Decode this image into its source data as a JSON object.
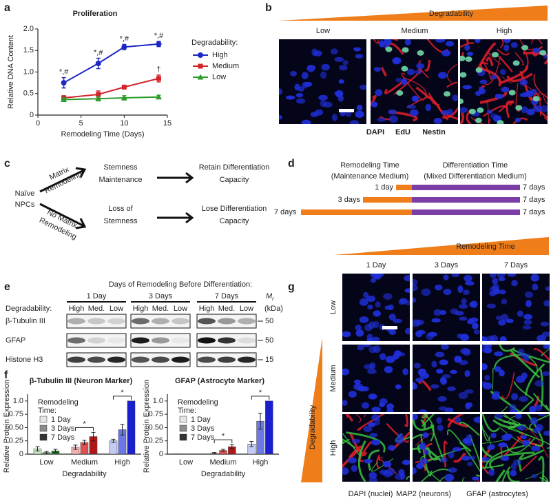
{
  "panel_labels": [
    "a",
    "b",
    "c",
    "d",
    "e",
    "f",
    "g"
  ],
  "chart_data": [
    {
      "type": "line",
      "title": "Proliferation",
      "x_label": "Remodeling Time (Days)",
      "y_label": "Relative DNA Content",
      "legend_title": "Degradability:",
      "x": [
        3,
        7,
        10,
        14
      ],
      "xlim": [
        0,
        15
      ],
      "xticks": [
        0,
        5,
        10,
        15
      ],
      "ylim": [
        0,
        2
      ],
      "yticks": [
        0,
        0.5,
        {
          "value": 1,
          "label": "1.0"
        },
        1.5,
        {
          "value": 2,
          "label": "2.0"
        }
      ],
      "series": [
        {
          "name": "High",
          "color": "#1c27c4",
          "marker": "circle",
          "values": [
            0.75,
            1.2,
            1.58,
            1.65
          ],
          "errors": [
            0.12,
            0.12,
            0.06,
            0.06
          ],
          "point_labels": [
            "*,#",
            "*,#",
            "*,#",
            "*,#"
          ]
        },
        {
          "name": "Medium",
          "color": "#d2232a",
          "marker": "square",
          "values": [
            0.4,
            0.48,
            0.65,
            0.85
          ],
          "errors": [
            0.05,
            0.08,
            0.04,
            0.08
          ],
          "point_labels": [
            null,
            null,
            null,
            "†"
          ]
        },
        {
          "name": "Low",
          "color": "#2a9d2a",
          "marker": "triangle",
          "values": [
            0.36,
            0.38,
            0.4,
            0.42
          ],
          "errors": [
            0.04,
            0.05,
            0.05,
            0.04
          ],
          "point_labels": [
            null,
            null,
            null,
            null
          ]
        }
      ]
    },
    {
      "type": "bar",
      "title": "β-Tubulin III (Neuron Marker)",
      "x_label": "Degradability",
      "y_label": "Relative Protein Expression",
      "legend_title": [
        "Remodeling",
        "Time:"
      ],
      "categories": [
        "Low",
        "Medium",
        "High"
      ],
      "ylim": [
        0,
        1.05
      ],
      "yticks": [
        0,
        0.25,
        {
          "value": 0.5,
          "label": "0.50"
        },
        0.75,
        {
          "value": 1,
          "label": "1.0"
        }
      ],
      "series": [
        {
          "name": "1 Day",
          "color": "#e6e6e6",
          "colors": [
            "#c8e6c0",
            "#f3b2b2",
            "#c5cbf3"
          ],
          "values": [
            0.1,
            0.13,
            0.25
          ],
          "errors": [
            0.04,
            0.04,
            0.03
          ]
        },
        {
          "name": "3 Days",
          "color": "#8c8c8c",
          "colors": [
            "#5fb35a",
            "#e05050",
            "#6b78e6"
          ],
          "values": [
            0.03,
            0.22,
            0.46
          ],
          "errors": [
            0.02,
            0.04,
            0.1
          ]
        },
        {
          "name": "7 Days",
          "color": "#333333",
          "colors": [
            "#1e7a2a",
            "#b01818",
            "#1a1fd0"
          ],
          "values": [
            0.06,
            0.33,
            1.0
          ],
          "errors": [
            0.03,
            0.08,
            0
          ]
        }
      ],
      "significance": [
        "*",
        "*"
      ]
    },
    {
      "type": "bar",
      "title": "GFAP (Astrocyte Marker)",
      "x_label": "Degradability",
      "y_label": "Relative Protein Expression",
      "legend_title": [
        "Remodeling",
        "Time:"
      ],
      "categories": [
        "Low",
        "Medium",
        "High"
      ],
      "ylim": [
        0,
        1.05
      ],
      "yticks": [
        0,
        0.25,
        {
          "value": 0.5,
          "label": "0.50"
        },
        0.75,
        {
          "value": 1,
          "label": "1.0"
        }
      ],
      "series": [
        {
          "name": "1 Day",
          "color": "#e6e6e6",
          "colors": [
            "#c8e6c0",
            "#f3b2b2",
            "#c5cbf3"
          ],
          "values": [
            0.01,
            0.02,
            0.19
          ],
          "errors": [
            0,
            0.01,
            0.05
          ]
        },
        {
          "name": "3 Days",
          "color": "#8c8c8c",
          "colors": [
            "#5fb35a",
            "#e05050",
            "#6b78e6"
          ],
          "values": [
            0.005,
            0.07,
            0.62
          ],
          "errors": [
            0,
            0.02,
            0.15
          ]
        },
        {
          "name": "7 Days",
          "color": "#333333",
          "colors": [
            "#1e7a2a",
            "#b01818",
            "#1a1fd0"
          ],
          "values": [
            0.005,
            0.14,
            1.0
          ],
          "errors": [
            0,
            0.04,
            0
          ]
        }
      ],
      "significance": [
        "*",
        "*"
      ]
    }
  ],
  "panel_b": {
    "banner": "Degradability",
    "columns": [
      "Low",
      "Medium",
      "High"
    ],
    "stains": [
      "DAPI",
      "EdU",
      "Nestin"
    ]
  },
  "panel_c": {
    "start": [
      "Naïve",
      "NPCs"
    ],
    "branches": [
      {
        "label": [
          "Matrix",
          "Remodeling"
        ],
        "outcome": [
          "Stemness",
          "Maintenance"
        ],
        "result": [
          "Retain Differentiation",
          "Capacity"
        ]
      },
      {
        "label": [
          "No Matrix",
          "Remodeling"
        ],
        "outcome": [
          "Loss of",
          "Stemness"
        ],
        "result": [
          "Lose Differentiation",
          "Capacity"
        ]
      }
    ]
  },
  "panel_d": {
    "remodeling_header": [
      "Remodeling Time",
      "(Maintenance Medium)"
    ],
    "differentiation_header": [
      "Differentiation Time",
      "(Mixed Differentiation Medium)"
    ],
    "rows": [
      [
        "1 day",
        "7 days"
      ],
      [
        "3 days",
        "7 days"
      ],
      [
        "7 days",
        "7 days"
      ]
    ]
  },
  "panel_e": {
    "header": "Days of Remodeling Before Differentiation:",
    "groups": [
      "1 Day",
      "3 Days",
      "7 Days"
    ],
    "degradability_label": "Degradability:",
    "lanes": [
      "High",
      "Med.",
      "Low"
    ],
    "proteins": [
      "β-Tubulin III",
      "GFAP",
      "Histone H3"
    ],
    "mr_label": "M",
    "mr_subscript": "r",
    "unit": "(kDa)",
    "markers": [
      50,
      50,
      15
    ]
  },
  "panel_g": {
    "banner": "Remodeling Time",
    "columns": [
      "1 Day",
      "3 Days",
      "7 Days"
    ],
    "side_banner": "Degradability",
    "rows": [
      "Low",
      "Medium",
      "High"
    ],
    "stains": [
      "DAPI (nuclei)",
      "MAP2 (neurons)",
      "GFAP (astrocytes)"
    ]
  }
}
